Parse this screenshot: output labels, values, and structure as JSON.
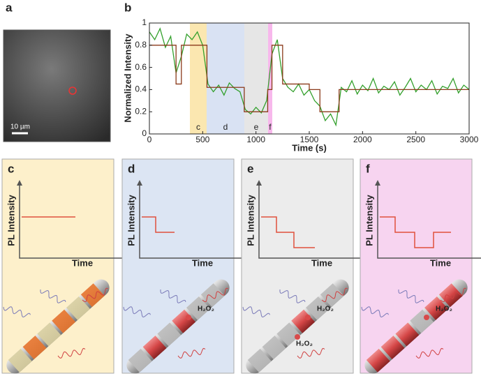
{
  "panel_labels": [
    "a",
    "b"
  ],
  "micrograph": {
    "scale_bar": "10 µm"
  },
  "chart_data": {
    "type": "line",
    "xlabel": "Time (s)",
    "ylabel": "Normalized Intensity",
    "xlim": [
      0,
      3000
    ],
    "ylim": [
      0,
      1
    ],
    "xticks": [
      0,
      500,
      1000,
      1500,
      2000,
      2500,
      3000
    ],
    "yticks": [
      0,
      0.2,
      0.4,
      0.6,
      0.8,
      1
    ],
    "regions": [
      {
        "label": "c",
        "range": [
          380,
          537
        ],
        "color": "#fbe7b0"
      },
      {
        "label": "d",
        "range": [
          537,
          891
        ],
        "color": "#d9e2f3"
      },
      {
        "label": "e",
        "range": [
          891,
          1113
        ],
        "color": "#e6e6e6"
      },
      {
        "label": "f",
        "range": [
          1113,
          1153
        ],
        "color": "#f7b8ec"
      }
    ],
    "series": [
      {
        "color": "#33a02c",
        "x": [
          0,
          50,
          100,
          150,
          200,
          250,
          300,
          350,
          400,
          450,
          500,
          550,
          600,
          650,
          700,
          750,
          800,
          850,
          900,
          950,
          1000,
          1050,
          1100,
          1150,
          1200,
          1250,
          1300,
          1350,
          1400,
          1450,
          1500,
          1550,
          1600,
          1650,
          1700,
          1750,
          1800,
          1850,
          1900,
          1950,
          2000,
          2050,
          2100,
          2150,
          2200,
          2250,
          2300,
          2350,
          2400,
          2450,
          2500,
          2550,
          2600,
          2650,
          2700,
          2750,
          2800,
          2850,
          2900,
          2950,
          3000
        ],
        "values": [
          0.92,
          0.85,
          0.95,
          0.78,
          0.88,
          0.55,
          0.7,
          0.9,
          0.85,
          0.92,
          0.8,
          0.45,
          0.38,
          0.44,
          0.35,
          0.46,
          0.41,
          0.38,
          0.22,
          0.18,
          0.24,
          0.19,
          0.3,
          0.72,
          0.85,
          0.5,
          0.42,
          0.38,
          0.45,
          0.35,
          0.4,
          0.3,
          0.25,
          0.12,
          0.18,
          0.08,
          0.42,
          0.38,
          0.48,
          0.36,
          0.44,
          0.39,
          0.5,
          0.37,
          0.43,
          0.4,
          0.47,
          0.35,
          0.42,
          0.5,
          0.38,
          0.44,
          0.4,
          0.48,
          0.36,
          0.43,
          0.41,
          0.5,
          0.37,
          0.44,
          0.4
        ]
      },
      {
        "color": "#8b3a1a",
        "x": [
          0,
          250,
          250,
          300,
          300,
          540,
          540,
          890,
          890,
          1110,
          1110,
          1150,
          1150,
          1250,
          1250,
          1500,
          1500,
          1600,
          1600,
          1780,
          1780,
          3000
        ],
        "values": [
          0.8,
          0.8,
          0.45,
          0.45,
          0.8,
          0.8,
          0.42,
          0.42,
          0.2,
          0.2,
          0.4,
          0.4,
          0.8,
          0.8,
          0.45,
          0.45,
          0.4,
          0.4,
          0.2,
          0.2,
          0.4,
          0.4
        ]
      }
    ]
  },
  "schematics": [
    {
      "label": "c",
      "ylabel": "PL Intensity",
      "xlabel": "Time",
      "molecules": []
    },
    {
      "label": "d",
      "ylabel": "PL Intensity",
      "xlabel": "Time",
      "molecules": [
        "H₂O₂"
      ]
    },
    {
      "label": "e",
      "ylabel": "PL Intensity",
      "xlabel": "Time",
      "molecules": [
        "H₂O₂",
        "H₂O₂"
      ]
    },
    {
      "label": "f",
      "ylabel": "PL Intensity",
      "xlabel": "Time",
      "molecules": [
        "H₂O₂"
      ]
    }
  ]
}
